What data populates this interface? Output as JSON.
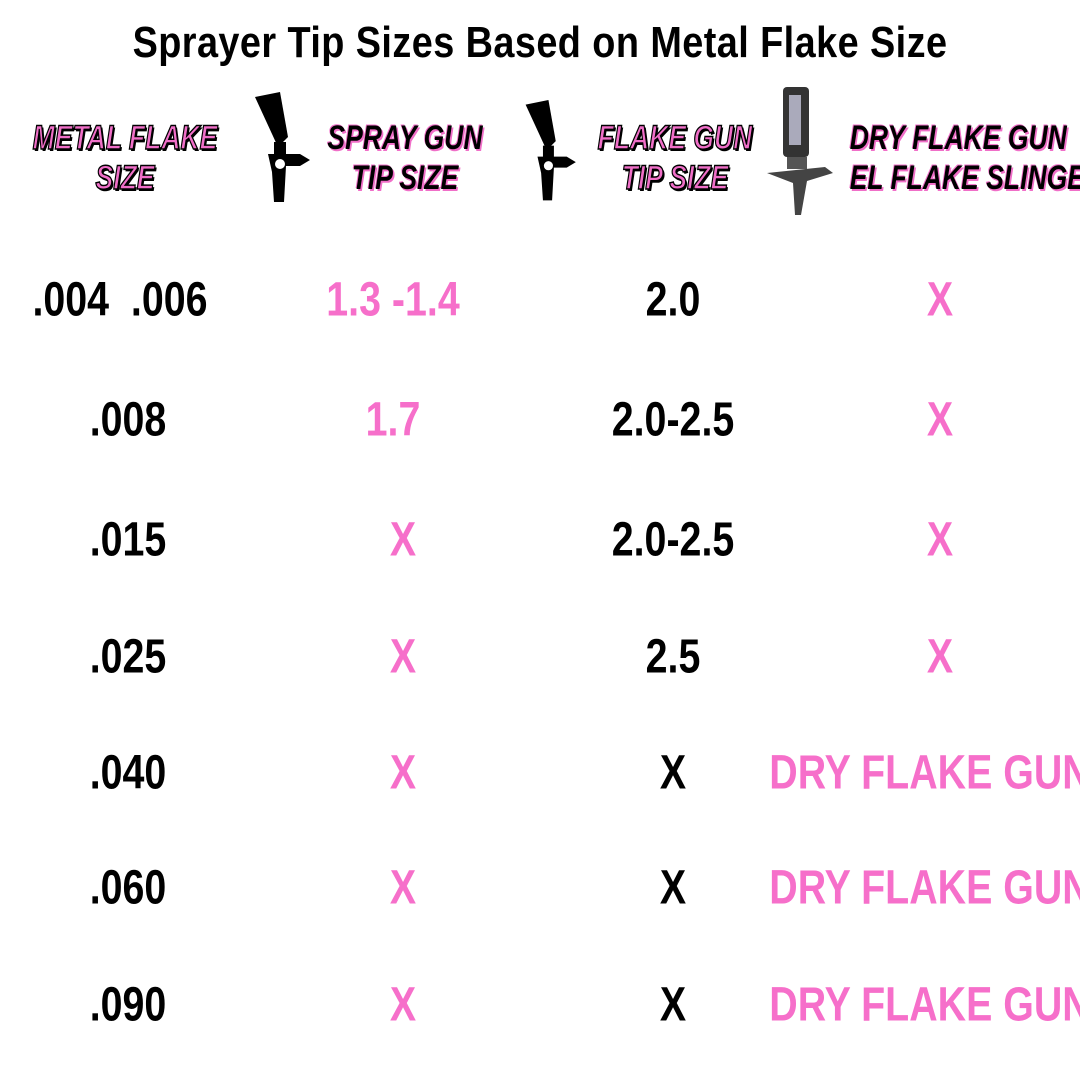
{
  "title": "Sprayer Tip Sizes Based on Metal Flake Size",
  "headers": {
    "metal_flake": [
      "METAL FLAKE",
      "SIZE"
    ],
    "spray_gun": [
      "SPRAY GUN",
      "TIP SIZE"
    ],
    "flake_gun": [
      "FLAKE GUN",
      "TIP SIZE"
    ],
    "dry_flake": [
      "DRY FLAKE GUN",
      "EL FLAKE SLINGER"
    ]
  },
  "icons": [
    "spray-gun-icon",
    "spray-gun-icon",
    "dry-flake-gun-icon"
  ],
  "colors": {
    "pink": "#f66fca",
    "black": "#000000"
  },
  "rows": [
    {
      "size": ".004  .006",
      "spray": "1.3 -1.4",
      "flake": "2.0",
      "dry": "X"
    },
    {
      "size": ".008",
      "spray": "1.7",
      "flake": "2.0-2.5",
      "dry": "X"
    },
    {
      "size": ".015",
      "spray": "X",
      "flake": "2.0-2.5",
      "dry": "X"
    },
    {
      "size": ".025",
      "spray": "X",
      "flake": "2.5",
      "dry": "X"
    },
    {
      "size": ".040",
      "spray": "X",
      "flake": "X",
      "dry": "DRY FLAKE GUN"
    },
    {
      "size": ".060",
      "spray": "X",
      "flake": "X",
      "dry": "DRY FLAKE GUN"
    },
    {
      "size": ".090",
      "spray": "X",
      "flake": "X",
      "dry": "DRY FLAKE GUN"
    }
  ]
}
